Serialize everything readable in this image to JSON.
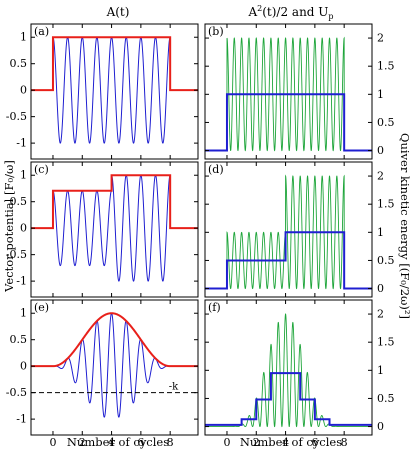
{
  "figure": {
    "left_title": "A(t)",
    "right_title_parts": {
      "main": "A",
      "sup": "2",
      "rest": "(t)/2  and  U",
      "sub": "p"
    },
    "left_ylabel": "Vector potential [F₀/ω]",
    "right_ylabel": "Quiver kinetic energy [(F₀/2ω)²]",
    "xlabel": "Number of cycles",
    "k_label": "-k",
    "colors": {
      "envelope": "#e8201a",
      "field": "#1f1fd1",
      "a2": "#1ea53a",
      "up": "#1f1fd1",
      "axis": "#000000",
      "dash": "#000000"
    }
  },
  "chart_data": [
    {
      "type": "line",
      "panel": "(a)",
      "position": "left-top",
      "xlim": [
        -1.5,
        9.9
      ],
      "ylim": [
        -1.3,
        1.25
      ],
      "xticks": [
        0,
        2,
        4,
        6,
        8
      ],
      "yticks": [
        -1,
        -0.5,
        0,
        0.5,
        1
      ],
      "xtick_labels_shown": false,
      "series": [
        {
          "kind": "field",
          "envelope": "box",
          "t_on": 0,
          "t_off": 8,
          "cycles_per_unit": 1,
          "amplitude": 1
        },
        {
          "kind": "envelope",
          "points": [
            [
              -1.5,
              0
            ],
            [
              0,
              0
            ],
            [
              0,
              1
            ],
            [
              8,
              1
            ],
            [
              8,
              0
            ],
            [
              9.9,
              0
            ]
          ]
        }
      ]
    },
    {
      "type": "line",
      "panel": "(b)",
      "position": "right-top",
      "xlim": [
        -1.5,
        9.9
      ],
      "ylim": [
        -0.15,
        2.25
      ],
      "xticks": [
        0,
        2,
        4,
        6,
        8
      ],
      "yticks": [
        0,
        0.5,
        1,
        1.5,
        2
      ],
      "xtick_labels_shown": false,
      "series": [
        {
          "kind": "a2",
          "envelope": "box",
          "t_on": 0,
          "t_off": 8,
          "amplitude": 1
        },
        {
          "kind": "up",
          "points": [
            [
              -1.5,
              0
            ],
            [
              0,
              0
            ],
            [
              0,
              1
            ],
            [
              8,
              1
            ],
            [
              8,
              0
            ],
            [
              9.9,
              0
            ]
          ]
        }
      ]
    },
    {
      "type": "line",
      "panel": "(c)",
      "position": "left-middle",
      "xlim": [
        -1.5,
        9.9
      ],
      "ylim": [
        -1.3,
        1.25
      ],
      "xticks": [
        0,
        2,
        4,
        6,
        8
      ],
      "yticks": [
        -1,
        -0.5,
        0,
        0.5,
        1
      ],
      "xtick_labels_shown": false,
      "series": [
        {
          "kind": "field",
          "envelope": "step",
          "t_on": 0,
          "t_step": 4,
          "t_off": 8,
          "amp_low": 0.707,
          "amp_high": 1
        },
        {
          "kind": "envelope",
          "points": [
            [
              -1.5,
              0
            ],
            [
              0,
              0
            ],
            [
              0,
              0.707
            ],
            [
              4,
              0.707
            ],
            [
              4,
              1
            ],
            [
              8,
              1
            ],
            [
              8,
              0
            ],
            [
              9.9,
              0
            ]
          ]
        }
      ]
    },
    {
      "type": "line",
      "panel": "(d)",
      "position": "right-middle",
      "xlim": [
        -1.5,
        9.9
      ],
      "ylim": [
        -0.15,
        2.25
      ],
      "xticks": [
        0,
        2,
        4,
        6,
        8
      ],
      "yticks": [
        0,
        0.5,
        1,
        1.5,
        2
      ],
      "xtick_labels_shown": false,
      "series": [
        {
          "kind": "a2",
          "envelope": "step",
          "t_on": 0,
          "t_step": 4,
          "t_off": 8,
          "amp_low": 0.707,
          "amp_high": 1
        },
        {
          "kind": "up",
          "points": [
            [
              -1.5,
              0
            ],
            [
              0,
              0
            ],
            [
              0,
              0.5
            ],
            [
              4,
              0.5
            ],
            [
              4,
              1
            ],
            [
              8,
              1
            ],
            [
              8,
              0
            ],
            [
              9.9,
              0
            ]
          ]
        }
      ]
    },
    {
      "type": "line",
      "panel": "(e)",
      "position": "left-bottom",
      "xlim": [
        -1.5,
        9.9
      ],
      "ylim": [
        -1.3,
        1.25
      ],
      "xticks": [
        0,
        2,
        4,
        6,
        8
      ],
      "yticks": [
        -1,
        -0.5,
        0,
        0.5,
        1
      ],
      "xtick_labels_shown": true,
      "series": [
        {
          "kind": "field",
          "envelope": "sin2",
          "t_on": 0,
          "t_off": 8,
          "amplitude": 1
        },
        {
          "kind": "envelope",
          "envelope": "sin2",
          "t_on": 0,
          "t_off": 8,
          "amplitude": 1
        },
        {
          "kind": "dashed",
          "y": -0.5
        }
      ]
    },
    {
      "type": "line",
      "panel": "(f)",
      "position": "right-bottom",
      "xlim": [
        -1.5,
        9.9
      ],
      "ylim": [
        -0.15,
        2.25
      ],
      "xticks": [
        0,
        2,
        4,
        6,
        8
      ],
      "yticks": [
        0,
        0.5,
        1,
        1.5,
        2
      ],
      "xtick_labels_shown": true,
      "series": [
        {
          "kind": "a2",
          "envelope": "sin2",
          "t_on": 0,
          "t_off": 8,
          "amplitude": 1
        },
        {
          "kind": "up",
          "points": [
            [
              -1.5,
              0.03
            ],
            [
              1,
              0.03
            ],
            [
              1,
              0.13
            ],
            [
              2,
              0.13
            ],
            [
              2,
              0.48
            ],
            [
              3,
              0.48
            ],
            [
              3,
              0.95
            ],
            [
              5,
              0.95
            ],
            [
              5,
              0.48
            ],
            [
              6,
              0.48
            ],
            [
              6,
              0.13
            ],
            [
              7,
              0.13
            ],
            [
              7,
              0.03
            ],
            [
              9.9,
              0.03
            ]
          ]
        }
      ]
    }
  ]
}
